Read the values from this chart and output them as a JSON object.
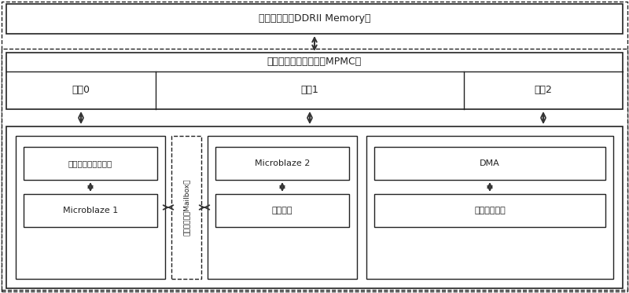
{
  "bg_color": "#ffffff",
  "title_top": "外部存储器（DDRII Memory）",
  "mpmc_label": "多端口存储器控制器（MPMC）",
  "port0_label": "端口0",
  "port1_label": "端口1",
  "port2_label": "端口2",
  "box1_top_label": "数据与地址总线接口",
  "box1_bot_label": "Microblaze 1",
  "box2_label": "通讯管理器（Mailbox）",
  "box3_top_label": "Microblaze 2",
  "box3_bot_label": "通讯接口",
  "box4_top_label": "DMA",
  "box4_bot_label": "显示输出模块",
  "fig_width": 8.0,
  "fig_height": 3.73,
  "dpi": 100
}
